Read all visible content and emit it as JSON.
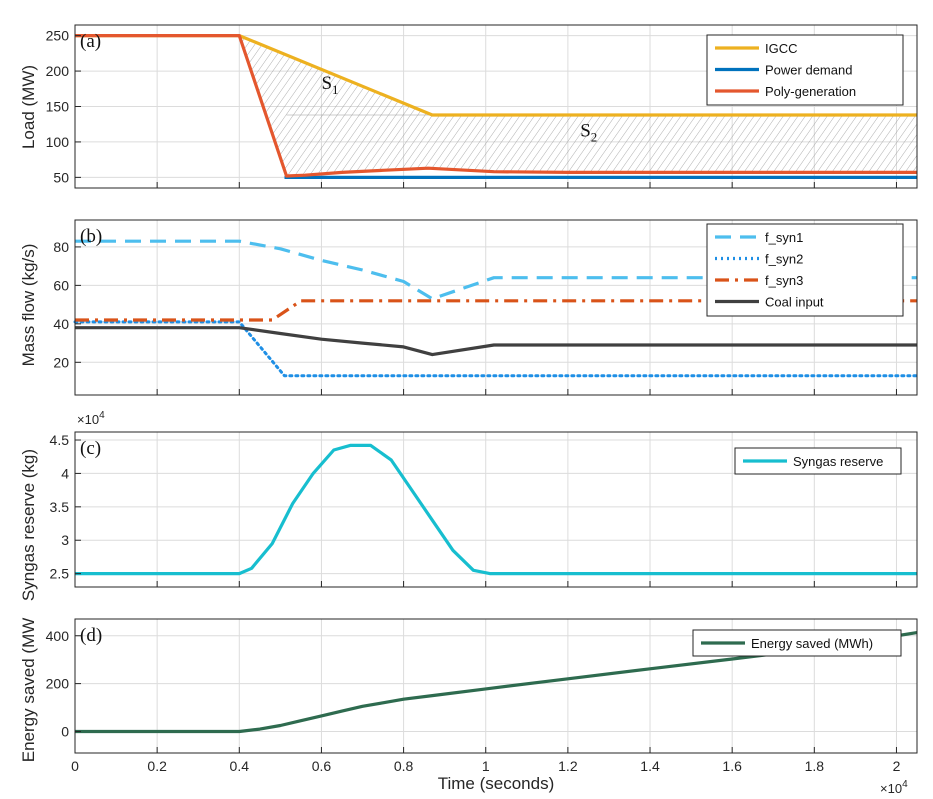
{
  "chart_data": [
    {
      "type": "line",
      "panel_label": "(a)",
      "ylabel": "Load (MW)",
      "xlim": [
        0,
        20500
      ],
      "ylim": [
        35,
        265
      ],
      "yticks": [
        50,
        100,
        150,
        200,
        250
      ],
      "ytick_labels": [
        "50",
        "100",
        "150",
        "200",
        "250"
      ],
      "grid": true,
      "legend_position": "top-right",
      "series": [
        {
          "name": "IGCC",
          "color": "#EDB120",
          "style": "solid",
          "x": [
            0,
            4000,
            8700,
            20500
          ],
          "y": [
            250,
            250,
            138,
            138
          ]
        },
        {
          "name": "Power demand",
          "color": "#0072BD",
          "style": "solid",
          "x": [
            5100,
            20500
          ],
          "y": [
            50,
            50
          ]
        },
        {
          "name": "Poly-generation",
          "color": "#E4572E",
          "style": "solid",
          "x": [
            0,
            4000,
            5150,
            5600,
            6500,
            7500,
            8600,
            10200,
            12000,
            14000,
            16000,
            18000,
            20500
          ],
          "y": [
            250,
            250,
            52,
            53,
            57,
            60,
            63,
            58,
            57,
            57,
            57,
            57,
            57
          ]
        }
      ],
      "annotations": [
        {
          "text": "S",
          "subscript": "1",
          "x": 6000,
          "y": 175
        },
        {
          "text": "S",
          "subscript": "2",
          "x": 12300,
          "y": 108
        }
      ]
    },
    {
      "type": "line",
      "panel_label": "(b)",
      "ylabel": "Mass flow (kg/s)",
      "xlim": [
        0,
        20500
      ],
      "ylim": [
        3,
        94
      ],
      "yticks": [
        20,
        40,
        60,
        80
      ],
      "ytick_labels": [
        "20",
        "40",
        "60",
        "80"
      ],
      "grid": true,
      "legend_position": "top-right",
      "series": [
        {
          "name": "f_syn1",
          "color": "#4DBEEE",
          "style": "dashed",
          "x": [
            0,
            4000,
            5000,
            6000,
            7000,
            8000,
            8700,
            10200,
            20500
          ],
          "y": [
            83,
            83,
            79,
            73,
            68,
            62,
            53,
            64,
            64
          ]
        },
        {
          "name": "f_syn2",
          "color": "#1F8FE5",
          "style": "dotted",
          "x": [
            0,
            4000,
            5100,
            20500
          ],
          "y": [
            41,
            41,
            13,
            13
          ]
        },
        {
          "name": "f_syn3",
          "color": "#D95319",
          "style": "dashdot",
          "x": [
            0,
            4800,
            5500,
            20500
          ],
          "y": [
            42,
            42,
            52,
            52
          ]
        },
        {
          "name": "Coal input",
          "color": "#404040",
          "style": "solid",
          "x": [
            0,
            4000,
            5000,
            6000,
            7000,
            8000,
            8700,
            10200,
            20500
          ],
          "y": [
            38,
            38,
            35,
            32,
            30,
            28,
            24,
            29,
            29
          ]
        }
      ]
    },
    {
      "type": "line",
      "panel_label": "(c)",
      "ylabel": "Syngas reserve (kg)",
      "exponent_label": "×10",
      "exponent_power": "4",
      "xlim": [
        0,
        20500
      ],
      "ylim": [
        2.3,
        4.62
      ],
      "yticks": [
        2.5,
        3,
        3.5,
        4,
        4.5
      ],
      "ytick_labels": [
        "2.5",
        "3",
        "3.5",
        "4",
        "4.5"
      ],
      "grid": true,
      "legend_position": "top-right",
      "series": [
        {
          "name": "Syngas reserve",
          "color": "#17BECF",
          "style": "solid",
          "x": [
            0,
            4000,
            4300,
            4800,
            5300,
            5800,
            6300,
            6700,
            7200,
            7700,
            8200,
            8700,
            9200,
            9700,
            10100,
            20500
          ],
          "y": [
            2.5,
            2.5,
            2.58,
            2.95,
            3.55,
            4.0,
            4.35,
            4.42,
            4.42,
            4.2,
            3.75,
            3.3,
            2.85,
            2.55,
            2.5,
            2.5
          ]
        }
      ]
    },
    {
      "type": "line",
      "panel_label": "(d)",
      "ylabel": "Energy saved (MW",
      "xlabel": "Time (seconds)",
      "x_exponent_label": "×10",
      "x_exponent_power": "4",
      "xlim": [
        0,
        20500
      ],
      "ylim": [
        -90,
        470
      ],
      "yticks": [
        0,
        200,
        400
      ],
      "ytick_labels": [
        "0",
        "200",
        "400"
      ],
      "xticks": [
        0,
        2000,
        4000,
        6000,
        8000,
        10000,
        12000,
        14000,
        16000,
        18000,
        20000
      ],
      "xtick_labels": [
        "0",
        "0.2",
        "0.4",
        "0.6",
        "0.8",
        "1",
        "1.2",
        "1.4",
        "1.6",
        "1.8",
        "2"
      ],
      "grid": true,
      "legend_position": "top-right",
      "series": [
        {
          "name": "Energy saved (MWh)",
          "color": "#2E6B4F",
          "style": "solid",
          "x": [
            0,
            4000,
            4500,
            5000,
            5500,
            6000,
            6500,
            7000,
            7500,
            8000,
            8700,
            10000,
            12000,
            14000,
            16000,
            18000,
            20500
          ],
          "y": [
            0,
            0,
            10,
            25,
            45,
            65,
            85,
            105,
            120,
            135,
            150,
            178,
            220,
            262,
            303,
            345,
            413
          ]
        }
      ]
    }
  ]
}
